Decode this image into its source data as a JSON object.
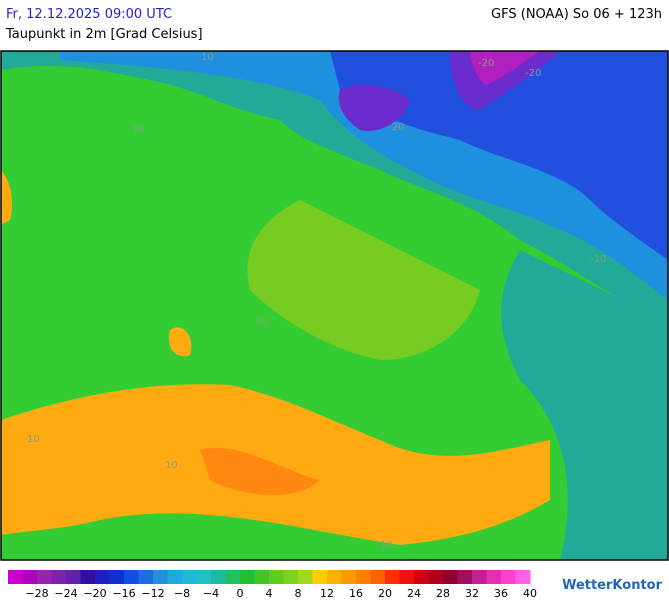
{
  "header": {
    "time": "Fr, 12.12.2025 09:00 UTC",
    "parameter": "Taupunkt in 2m [Grad Celsius]",
    "model": "GFS (NOAA) So 06 + 123h"
  },
  "map_labels": [
    "10",
    "-20",
    "-20",
    "-20",
    "10",
    "-10",
    "10",
    "10",
    "10",
    "10"
  ],
  "legend": {
    "labels": [
      "−28",
      "−24",
      "−20",
      "−16",
      "−12",
      "−8",
      "−4",
      "0",
      "4",
      "8",
      "12",
      "16",
      "20",
      "24",
      "28",
      "32",
      "36",
      "40"
    ]
  },
  "brand": "WetterKontor"
}
